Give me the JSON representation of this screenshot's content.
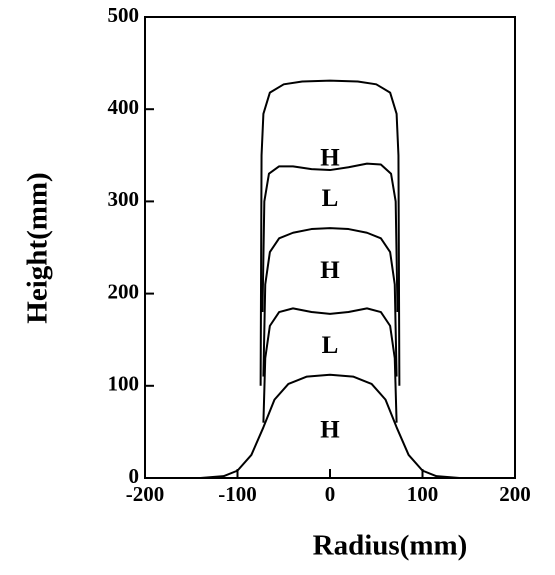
{
  "chart_data": {
    "type": "line",
    "xlabel": "Radius(mm)",
    "ylabel": "Height(mm)",
    "xlim": [
      -200,
      200
    ],
    "ylim": [
      0,
      500
    ],
    "xticks": [
      -200,
      -100,
      0,
      100,
      200
    ],
    "yticks": [
      0,
      100,
      200,
      300,
      400,
      500
    ],
    "series": [
      {
        "color": "#000000",
        "x": [
          -200,
          -140,
          -115,
          -100,
          -85,
          -72,
          -60,
          -45,
          -25,
          0,
          25,
          45,
          60,
          72,
          85,
          100,
          115,
          140,
          200
        ],
        "values": [
          0,
          0,
          2,
          8,
          25,
          55,
          85,
          102,
          110,
          112,
          110,
          102,
          85,
          55,
          25,
          8,
          2,
          0,
          0
        ]
      },
      {
        "color": "#000000",
        "x": [
          -72,
          -70,
          -65,
          -55,
          -40,
          -20,
          0,
          20,
          40,
          55,
          65,
          70,
          72
        ],
        "values": [
          60,
          130,
          165,
          180,
          184,
          180,
          178,
          180,
          184,
          180,
          165,
          130,
          60
        ]
      },
      {
        "color": "#000000",
        "x": [
          -72,
          -70,
          -65,
          -55,
          -40,
          -20,
          0,
          20,
          40,
          55,
          65,
          70,
          72
        ],
        "values": [
          110,
          210,
          245,
          260,
          266,
          270,
          271,
          270,
          266,
          260,
          245,
          210,
          110
        ]
      },
      {
        "color": "#000000",
        "x": [
          -73,
          -71,
          -66,
          -55,
          -40,
          -20,
          0,
          20,
          40,
          55,
          66,
          71,
          73
        ],
        "values": [
          180,
          300,
          330,
          338,
          338,
          335,
          334,
          337,
          341,
          340,
          330,
          300,
          180
        ]
      },
      {
        "color": "#000000",
        "x": [
          -75,
          -74,
          -72,
          -65,
          -50,
          -30,
          0,
          30,
          50,
          65,
          72,
          74,
          75
        ],
        "values": [
          100,
          350,
          395,
          418,
          427,
          430,
          431,
          430,
          427,
          418,
          395,
          350,
          100
        ]
      }
    ],
    "annotations": [
      {
        "text": "H",
        "x": 0,
        "y": 345
      },
      {
        "text": "L",
        "x": 0,
        "y": 301
      },
      {
        "text": "H",
        "x": 0,
        "y": 223
      },
      {
        "text": "L",
        "x": 0,
        "y": 142
      },
      {
        "text": "H",
        "x": 0,
        "y": 50
      }
    ]
  }
}
